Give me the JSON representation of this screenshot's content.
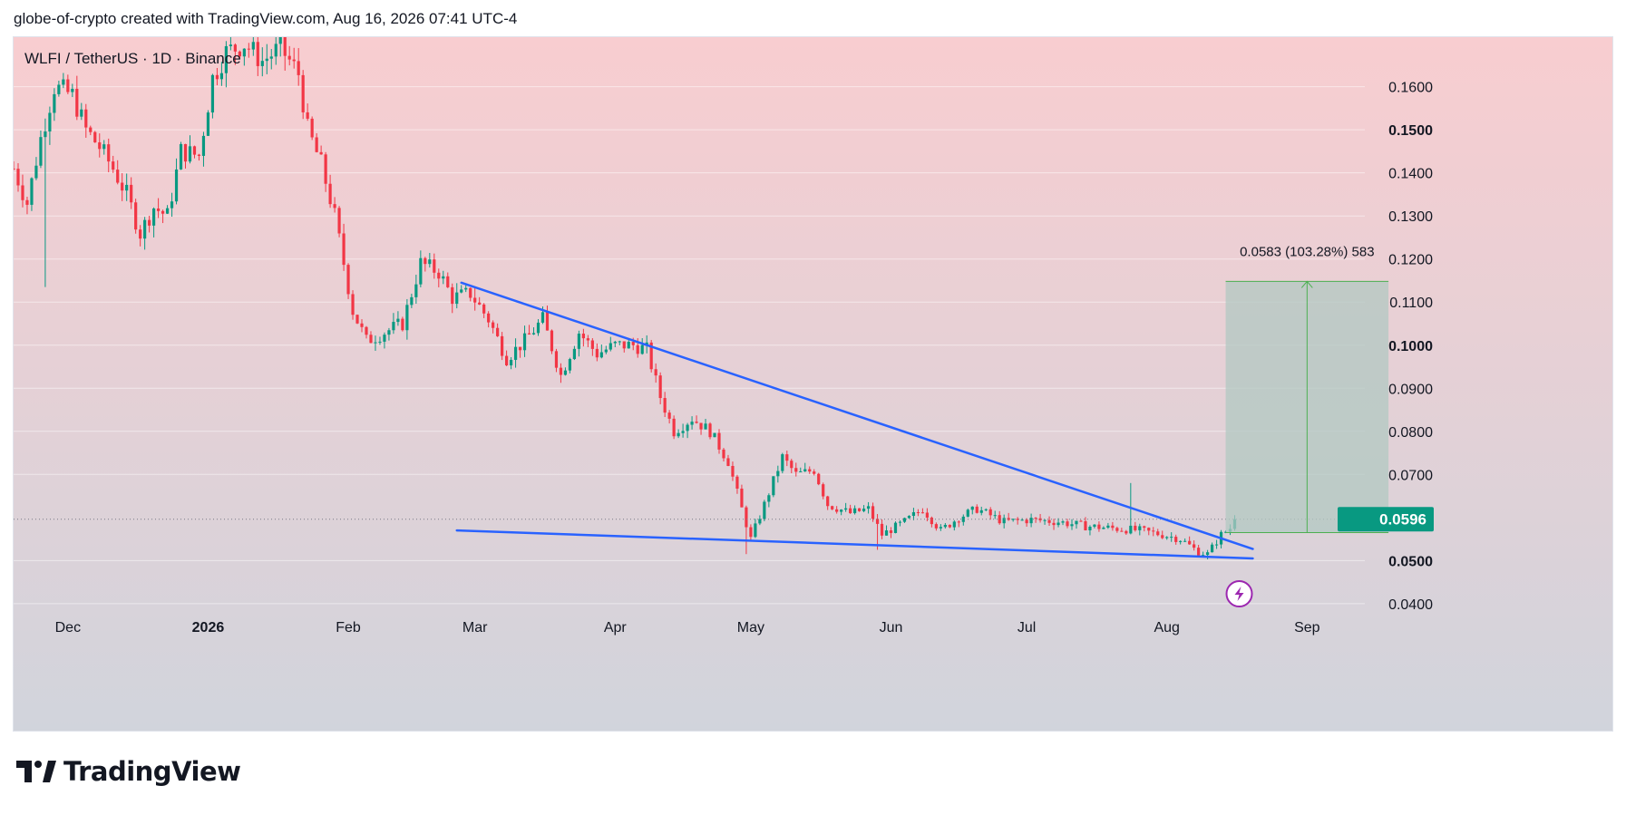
{
  "header": {
    "attribution": "globe-of-crypto created with TradingView.com, Aug 16, 2026 07:41 UTC-4"
  },
  "footer": {
    "logo_text": "TradingView"
  },
  "chart_data": {
    "type": "candlestick",
    "symbol_line": "WLFI / TetherUS · 1D · Binance",
    "last_price_label": "0.0596",
    "last_price": 0.0596,
    "y_axis": {
      "range": [
        0.0305,
        0.1715
      ],
      "ticks": [
        "0.1600",
        "0.1500",
        "0.1400",
        "0.1300",
        "0.1200",
        "0.1100",
        "0.1000",
        "0.0900",
        "0.0800",
        "0.0700",
        "0.0500",
        "0.0400"
      ],
      "bold_ticks": [
        "0.1500",
        "0.1000",
        "0.0500"
      ]
    },
    "x_axis": {
      "range": [
        "2025-11-19",
        "2026-09-26"
      ],
      "ticks": [
        {
          "label": "Dec",
          "date": "2025-12-01"
        },
        {
          "label": "2026",
          "date": "2026-01-01"
        },
        {
          "label": "Feb",
          "date": "2026-02-01"
        },
        {
          "label": "Mar",
          "date": "2026-03-01"
        },
        {
          "label": "Apr",
          "date": "2026-04-01"
        },
        {
          "label": "May",
          "date": "2026-05-01"
        },
        {
          "label": "Jun",
          "date": "2026-06-01"
        },
        {
          "label": "Jul",
          "date": "2026-07-01"
        },
        {
          "label": "Aug",
          "date": "2026-08-01"
        },
        {
          "label": "Sep",
          "date": "2026-09-01"
        }
      ],
      "bold_ticks": [
        "2026"
      ]
    },
    "colors": {
      "up": "#089981",
      "down": "#f23645",
      "trendline": "#2962ff",
      "measure_fill": "#b2c8c2",
      "measure_line": "#4caf50",
      "last_price_bg": "#089981",
      "background_top": "#f8cdd0",
      "background_bottom": "#d1d4dc"
    },
    "close_path": [
      [
        "2025-11-19",
        0.141
      ],
      [
        "2025-11-22",
        0.133
      ],
      [
        "2025-11-25",
        0.148
      ],
      [
        "2025-11-28",
        0.16
      ],
      [
        "2025-12-02",
        0.158
      ],
      [
        "2025-12-05",
        0.15
      ],
      [
        "2025-12-08",
        0.146
      ],
      [
        "2025-12-11",
        0.141
      ],
      [
        "2025-12-14",
        0.135
      ],
      [
        "2025-12-17",
        0.126
      ],
      [
        "2025-12-20",
        0.132
      ],
      [
        "2025-12-23",
        0.13
      ],
      [
        "2025-12-26",
        0.145
      ],
      [
        "2025-12-30",
        0.144
      ],
      [
        "2026-01-02",
        0.162
      ],
      [
        "2026-01-05",
        0.168
      ],
      [
        "2026-01-09",
        0.17
      ],
      [
        "2026-01-13",
        0.166
      ],
      [
        "2026-01-17",
        0.169
      ],
      [
        "2026-01-21",
        0.163
      ],
      [
        "2026-01-23",
        0.15
      ],
      [
        "2026-01-26",
        0.142
      ],
      [
        "2026-01-29",
        0.13
      ],
      [
        "2026-02-02",
        0.108
      ],
      [
        "2026-02-05",
        0.101
      ],
      [
        "2026-02-09",
        0.103
      ],
      [
        "2026-02-13",
        0.105
      ],
      [
        "2026-02-17",
        0.119
      ],
      [
        "2026-02-21",
        0.117
      ],
      [
        "2026-02-24",
        0.111
      ],
      [
        "2026-02-28",
        0.112
      ],
      [
        "2026-03-04",
        0.106
      ],
      [
        "2026-03-08",
        0.097
      ],
      [
        "2026-03-12",
        0.101
      ],
      [
        "2026-03-16",
        0.106
      ],
      [
        "2026-03-20",
        0.093
      ],
      [
        "2026-03-24",
        0.103
      ],
      [
        "2026-03-28",
        0.098
      ],
      [
        "2026-04-01",
        0.1
      ],
      [
        "2026-04-05",
        0.1
      ],
      [
        "2026-04-08",
        0.099
      ],
      [
        "2026-04-11",
        0.088
      ],
      [
        "2026-04-14",
        0.08
      ],
      [
        "2026-04-18",
        0.083
      ],
      [
        "2026-04-22",
        0.08
      ],
      [
        "2026-04-26",
        0.073
      ],
      [
        "2026-04-29",
        0.062
      ],
      [
        "2026-05-01",
        0.055
      ],
      [
        "2026-05-04",
        0.063
      ],
      [
        "2026-05-08",
        0.074
      ],
      [
        "2026-05-11",
        0.07
      ],
      [
        "2026-05-15",
        0.071
      ],
      [
        "2026-05-18",
        0.063
      ],
      [
        "2026-05-23",
        0.061
      ],
      [
        "2026-05-27",
        0.062
      ],
      [
        "2026-05-30",
        0.056
      ],
      [
        "2026-06-04",
        0.059
      ],
      [
        "2026-06-08",
        0.062
      ],
      [
        "2026-06-12",
        0.057
      ],
      [
        "2026-06-16",
        0.06
      ],
      [
        "2026-06-20",
        0.062
      ],
      [
        "2026-06-26",
        0.059
      ],
      [
        "2026-07-02",
        0.0595
      ],
      [
        "2026-07-08",
        0.059
      ],
      [
        "2026-07-14",
        0.058
      ],
      [
        "2026-07-20",
        0.0575
      ],
      [
        "2026-07-26",
        0.057
      ],
      [
        "2026-07-31",
        0.056
      ],
      [
        "2026-08-04",
        0.055
      ],
      [
        "2026-08-08",
        0.052
      ],
      [
        "2026-08-10",
        0.0515
      ],
      [
        "2026-08-13",
        0.056
      ],
      [
        "2026-08-15",
        0.0575
      ],
      [
        "2026-08-16",
        0.0596
      ]
    ],
    "wicks": [
      {
        "date": "2025-11-26",
        "low": 0.1135
      },
      {
        "date": "2026-04-30",
        "low": 0.0515
      },
      {
        "date": "2026-07-24",
        "high": 0.068
      },
      {
        "date": "2026-05-29",
        "low": 0.0525
      }
    ],
    "trendlines": [
      {
        "name": "upper",
        "from": [
          "2026-02-26",
          0.1145
        ],
        "to": [
          "2026-08-20",
          0.0527
        ]
      },
      {
        "name": "lower",
        "from": [
          "2026-02-25",
          0.057
        ],
        "to": [
          "2026-08-20",
          0.0505
        ]
      }
    ],
    "measure": {
      "label": "0.0583 (103.28%) 583",
      "from_date": "2026-08-14",
      "to_date": "2026-09-19",
      "low": 0.0565,
      "high": 0.1148
    },
    "icon": "lightning-icon"
  }
}
